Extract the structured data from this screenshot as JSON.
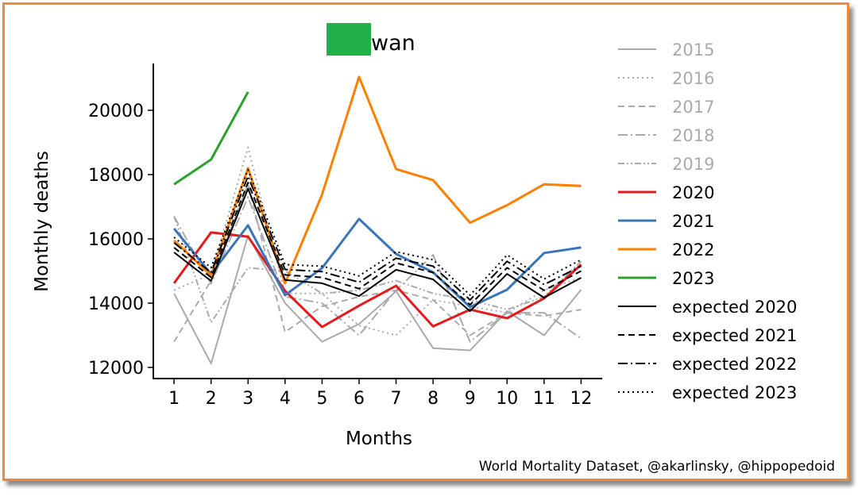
{
  "chart_data": {
    "type": "line",
    "title": "wan",
    "title_redaction_color": "#22b04b",
    "xlabel": "Months",
    "ylabel": "Monthly deaths",
    "x": [
      1,
      2,
      3,
      4,
      5,
      6,
      7,
      8,
      9,
      10,
      11,
      12
    ],
    "x_tick_labels": [
      "1",
      "2",
      "3",
      "4",
      "5",
      "6",
      "7",
      "8",
      "9",
      "10",
      "11",
      "12"
    ],
    "y_ticks": [
      12000,
      14000,
      16000,
      18000,
      20000
    ],
    "y_tick_labels": [
      "12000",
      "14000",
      "16000",
      "18000",
      "20000"
    ],
    "xlim": [
      0.44,
      12.57
    ],
    "ylim": [
      11654,
      21457
    ],
    "grid": false,
    "legend_placement": "right outside",
    "series": [
      {
        "name": "2015",
        "color": "#aaaaaa",
        "dash": "",
        "width": 2,
        "muted": true,
        "values": [
          14300,
          12120,
          16100,
          14000,
          12800,
          13350,
          14370,
          12600,
          12530,
          13750,
          13000,
          14420
        ]
      },
      {
        "name": "2016",
        "color": "#aaaaaa",
        "dash": "2,4",
        "width": 2,
        "muted": true,
        "values": [
          14400,
          14900,
          18850,
          14300,
          14300,
          13300,
          13000,
          14100,
          13900,
          13700,
          14400,
          14800
        ]
      },
      {
        "name": "2017",
        "color": "#aaaaaa",
        "dash": "8,5",
        "width": 2,
        "muted": true,
        "values": [
          12800,
          14700,
          17700,
          13100,
          13900,
          14200,
          14400,
          14100,
          13000,
          13700,
          13600,
          13800
        ]
      },
      {
        "name": "2018",
        "color": "#aaaaaa",
        "dash": "12,4,2,4",
        "width": 2,
        "muted": true,
        "values": [
          16700,
          14600,
          17300,
          14200,
          14000,
          13000,
          14400,
          15500,
          12800,
          13700,
          13700,
          12900
        ]
      },
      {
        "name": "2019",
        "color": "#aaaaaa",
        "dash": "8,3,2,3,2,3",
        "width": 2,
        "muted": true,
        "values": [
          16700,
          13400,
          15100,
          15000,
          14300,
          14400,
          14700,
          14300,
          14100,
          13800,
          14200,
          15300
        ]
      },
      {
        "name": "2020",
        "color": "#e41a1c",
        "dash": "",
        "width": 3,
        "muted": false,
        "values": [
          14620,
          16200,
          16070,
          14380,
          13260,
          13920,
          14540,
          13280,
          13800,
          13530,
          14150,
          15200
        ]
      },
      {
        "name": "2021",
        "color": "#3b75b9",
        "dash": "",
        "width": 3,
        "muted": false,
        "values": [
          16320,
          14900,
          16420,
          14250,
          15090,
          16620,
          15530,
          14960,
          13880,
          14420,
          15560,
          15730
        ]
      },
      {
        "name": "2022",
        "color": "#ff7f00",
        "dash": "",
        "width": 3,
        "muted": false,
        "values": [
          15950,
          14860,
          18200,
          14620,
          17380,
          21040,
          18170,
          17830,
          16500,
          17050,
          17700,
          17650
        ]
      },
      {
        "name": "2023",
        "color": "#2ca02c",
        "dash": "",
        "width": 3,
        "muted": false,
        "values": [
          17700,
          18470,
          20570,
          null,
          null,
          null,
          null,
          null,
          null,
          null,
          null,
          null
        ]
      },
      {
        "name": "expected 2020",
        "color": "#000000",
        "dash": "",
        "width": 2,
        "muted": false,
        "values": [
          15580,
          14690,
          17560,
          14720,
          14620,
          14220,
          15040,
          14740,
          13750,
          14910,
          14170,
          14790
        ]
      },
      {
        "name": "expected 2021",
        "color": "#000000",
        "dash": "8,5",
        "width": 2,
        "muted": false,
        "values": [
          15730,
          14800,
          17750,
          14880,
          14800,
          14450,
          15250,
          14950,
          13950,
          15100,
          14400,
          15000
        ]
      },
      {
        "name": "expected 2022",
        "color": "#000000",
        "dash": "12,4,2,4",
        "width": 2,
        "muted": false,
        "values": [
          15880,
          14950,
          17950,
          15050,
          14980,
          14650,
          15400,
          15150,
          14100,
          15300,
          14580,
          15150
        ]
      },
      {
        "name": "expected 2023",
        "color": "#000000",
        "dash": "2,4",
        "width": 2,
        "muted": false,
        "values": [
          16050,
          15100,
          18150,
          15200,
          15150,
          14850,
          15600,
          15350,
          14250,
          15500,
          14750,
          15350
        ]
      }
    ],
    "annotation": "World Mortality Dataset, @akarlinsky, @hippopedoid"
  }
}
